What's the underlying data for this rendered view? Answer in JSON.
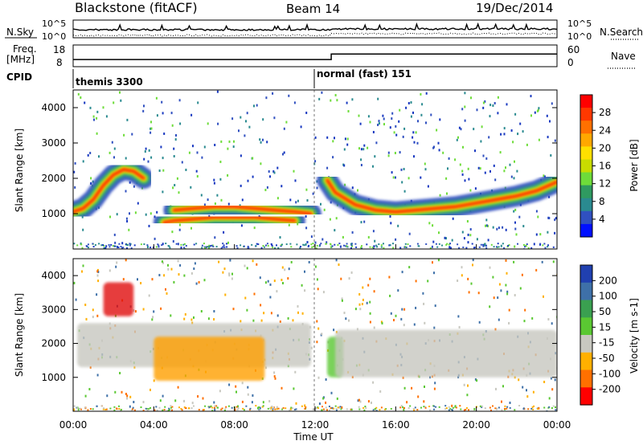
{
  "header": {
    "title": "Blackstone (fitACF)",
    "beam": "Beam 14",
    "date": "19/Dec/2014"
  },
  "top_panels": {
    "nsky_label": "N.Sky",
    "nsearch_label": "N.Search",
    "counts_top_left": "10^5",
    "counts_bottom_left": "10^0",
    "counts_top_right": "10^5",
    "counts_bottom_right": "10^0",
    "freq_label_1": "Freq.",
    "freq_label_2": "[MHz]",
    "freq_ticks": [
      "18",
      "8"
    ],
    "nave_ticks": [
      "60",
      "0"
    ],
    "nave_label": "Nave",
    "cpid_label": "CPID",
    "cpid_1": "themis 3300",
    "cpid_2": "normal (fast) 151",
    "freq_series": {
      "x_hours": [
        0,
        12.8,
        12.8,
        24
      ],
      "values": [
        11.3,
        11.3,
        13.8,
        13.8
      ]
    }
  },
  "chart_data": [
    {
      "type": "heatmap",
      "name": "power",
      "ylabel": "Slant Range [km]",
      "yticks": [
        "4000",
        "3000",
        "2000",
        "1000"
      ],
      "ylim": [
        0,
        4500
      ],
      "xlim_hours": [
        0,
        24
      ],
      "colorbar_label": "Power [dB]",
      "colorbar_ticks": [
        "28",
        "24",
        "20",
        "16",
        "12",
        "8",
        "4"
      ],
      "colorbar_colors": [
        "#ff0000",
        "#ff3800",
        "#ff7000",
        "#ffa800",
        "#ffe000",
        "#c8dc00",
        "#6edc3a",
        "#2f9a60",
        "#2a8a90",
        "#3050c0",
        "#0010ff"
      ],
      "bands": [
        {
          "x_hours": [
            0,
            0.5,
            1,
            1.5,
            2,
            2.5,
            3,
            3.5
          ],
          "y_km": [
            1050,
            1150,
            1400,
            1800,
            2100,
            2250,
            2200,
            2000
          ]
        },
        {
          "x_hours": [
            4.5,
            5,
            6,
            7,
            8,
            9,
            10,
            11
          ],
          "y_km": [
            750,
            800,
            850,
            900,
            900,
            900,
            850,
            800
          ]
        },
        {
          "x_hours": [
            5,
            6,
            7,
            8,
            9,
            10,
            11,
            11.8
          ],
          "y_km": [
            1100,
            1150,
            1200,
            1200,
            1150,
            1100,
            1050,
            1000
          ]
        },
        {
          "x_hours": [
            12.6,
            13,
            14,
            15,
            16,
            17,
            18,
            19,
            20,
            21,
            22,
            23,
            24
          ],
          "y_km": [
            1950,
            1600,
            1250,
            1100,
            1050,
            1100,
            1150,
            1200,
            1300,
            1400,
            1500,
            1650,
            1900
          ]
        }
      ]
    },
    {
      "type": "heatmap",
      "name": "velocity",
      "ylabel": "Slant Range [km]",
      "yticks": [
        "4000",
        "3000",
        "2000",
        "1000"
      ],
      "ylim": [
        0,
        4500
      ],
      "xlim_hours": [
        0,
        24
      ],
      "colorbar_label": "Velocity [m s-1]",
      "colorbar_ticks": [
        "200",
        "100",
        "50",
        "15",
        "-15",
        "-50",
        "-100",
        "-200"
      ],
      "colorbar_colors": [
        "#2040b0",
        "#3e70a8",
        "#3aa050",
        "#5ac832",
        "#c8c8c0",
        "#ffb000",
        "#ff7000",
        "#ff0000"
      ],
      "regions": [
        {
          "x_hours": [
            1.5,
            3.0
          ],
          "y_km": [
            2800,
            3800
          ],
          "color": "#e01010"
        },
        {
          "x_hours": [
            0.2,
            11.8
          ],
          "y_km": [
            1300,
            2600
          ],
          "color": "#c8c8c0"
        },
        {
          "x_hours": [
            4.0,
            9.5
          ],
          "y_km": [
            900,
            2200
          ],
          "color": "#ffa000"
        },
        {
          "x_hours": [
            12.6,
            13.4
          ],
          "y_km": [
            1000,
            2200
          ],
          "color": "#5ac832"
        },
        {
          "x_hours": [
            13.0,
            24.0
          ],
          "y_km": [
            1000,
            2400
          ],
          "color": "#c8c8c0"
        }
      ]
    }
  ],
  "x_axis": {
    "label": "Time UT",
    "ticks": [
      "00:00",
      "04:00",
      "08:00",
      "12:00",
      "16:00",
      "20:00",
      "00:00"
    ]
  }
}
